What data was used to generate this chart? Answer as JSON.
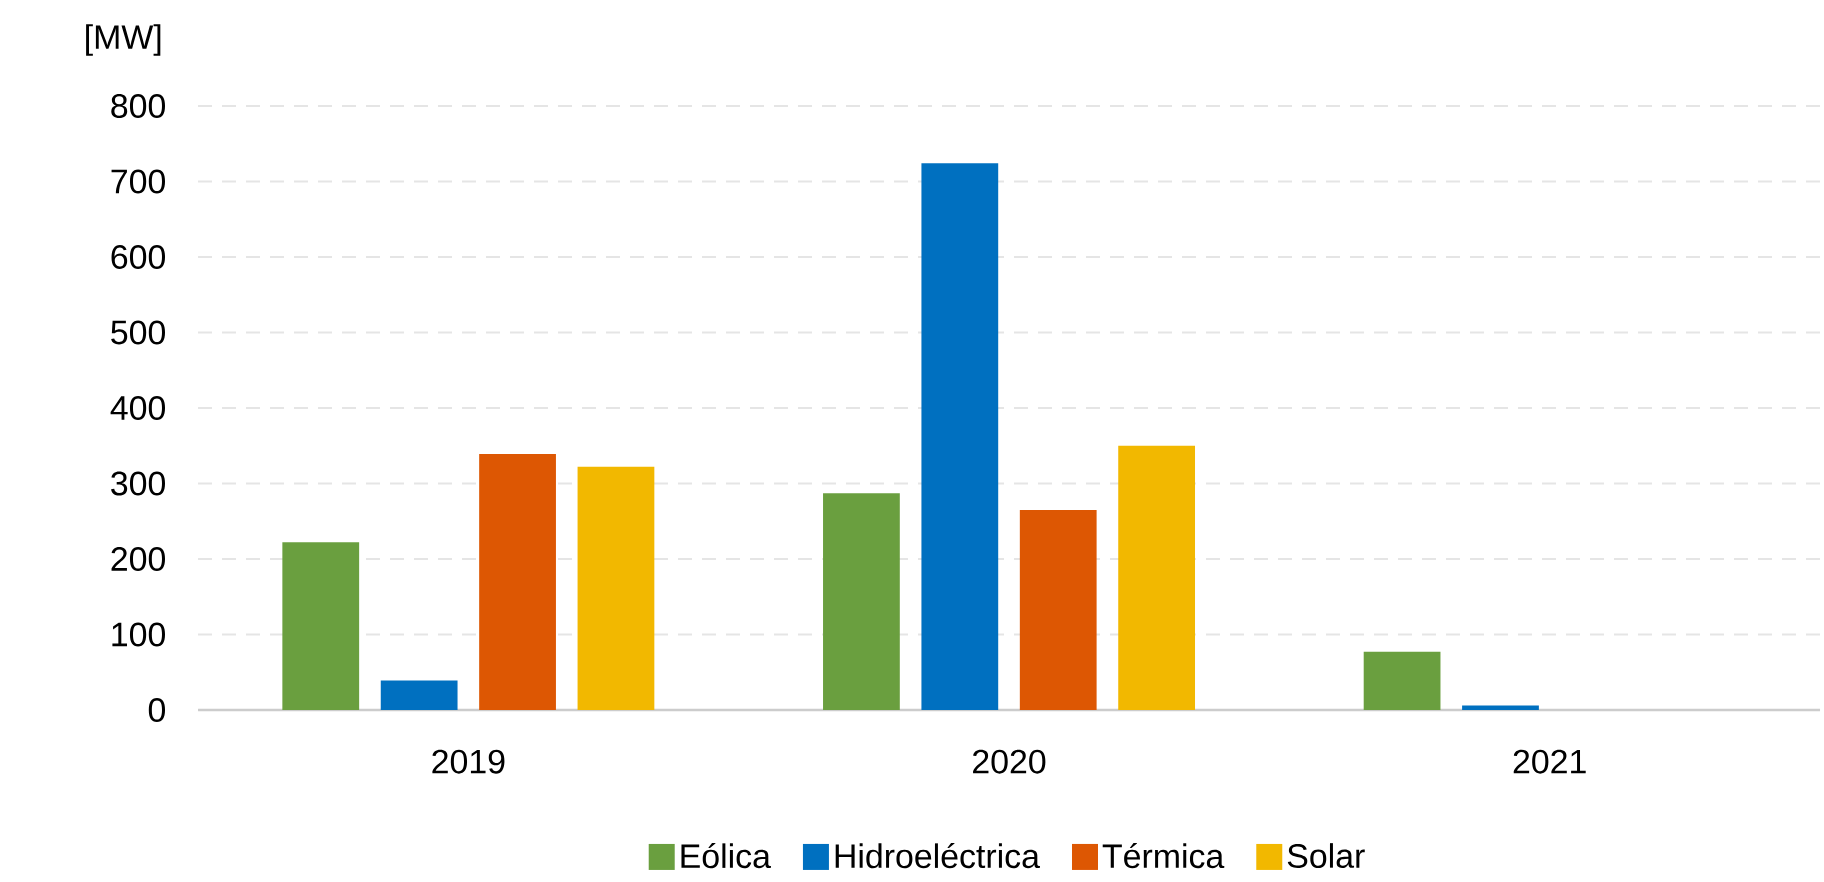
{
  "chart_data": {
    "type": "bar",
    "ylabel": "[MW]",
    "categories": [
      "2019",
      "2020",
      "2021"
    ],
    "series": [
      {
        "name": "Eólica",
        "color": "#6a9f3f",
        "values": [
          222,
          287,
          77
        ]
      },
      {
        "name": "Hidroeléctrica",
        "color": "#0070c0",
        "values": [
          39,
          724,
          6
        ]
      },
      {
        "name": "Térmica",
        "color": "#dd5703",
        "values": [
          339,
          265,
          null
        ]
      },
      {
        "name": "Solar",
        "color": "#f2b800",
        "values": [
          322,
          350,
          null
        ]
      }
    ],
    "ylim": [
      0,
      800
    ],
    "yticks": [
      0,
      100,
      200,
      300,
      400,
      500,
      600,
      700,
      800
    ],
    "grid": "y",
    "legend": "bottom"
  }
}
